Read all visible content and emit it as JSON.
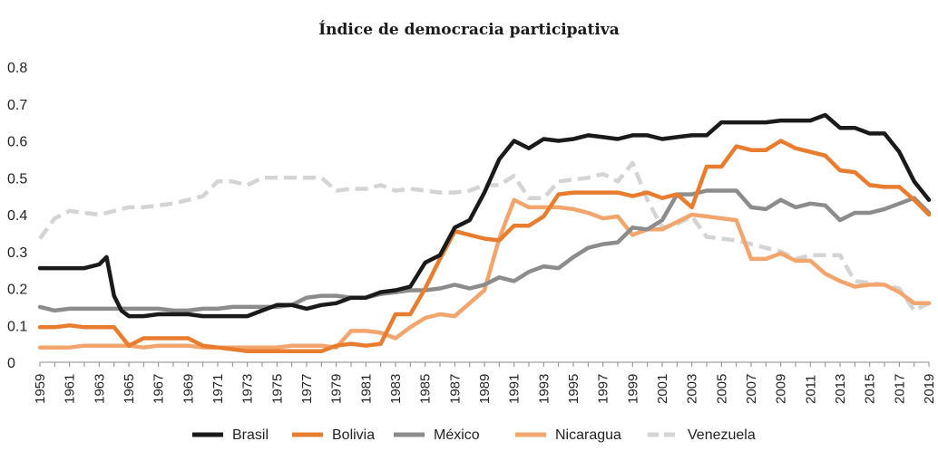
{
  "chart_data": {
    "type": "line",
    "title": "Índice de democracia participativa",
    "xlabel": "",
    "ylabel": "",
    "ylim": [
      0,
      0.8
    ],
    "yticks": [
      "0",
      "0.1",
      "0.2",
      "0.3",
      "0.4",
      "0.5",
      "0.6",
      "0.7",
      "0.8"
    ],
    "xlim": [
      1959,
      2019
    ],
    "xtick_labels": [
      "1959",
      "1961",
      "1963",
      "1965",
      "1967",
      "1969",
      "1971",
      "1973",
      "1975",
      "1977",
      "1979",
      "1981",
      "1983",
      "1985",
      "1987",
      "1989",
      "1991",
      "1993",
      "1995",
      "1997",
      "1999",
      "2001",
      "2003",
      "2005",
      "2007",
      "2009",
      "2011",
      "2013",
      "2015",
      "2017",
      "2019"
    ],
    "grid": false,
    "legend_position": "bottom",
    "series": [
      {
        "name": "Brasil",
        "color": "#1a1a1a",
        "dash": "solid",
        "x": [
          1959,
          1960,
          1961,
          1962,
          1963,
          1963.5,
          1964,
          1964.5,
          1965,
          1966,
          1967,
          1968,
          1969,
          1970,
          1971,
          1972,
          1973,
          1974,
          1975,
          1976,
          1977,
          1978,
          1979,
          1980,
          1981,
          1982,
          1983,
          1984,
          1985,
          1986,
          1987,
          1988,
          1989,
          1990,
          1991,
          1992,
          1993,
          1994,
          1995,
          1996,
          1997,
          1998,
          1999,
          2000,
          2001,
          2002,
          2003,
          2004,
          2005,
          2006,
          2007,
          2008,
          2009,
          2010,
          2011,
          2012,
          2013,
          2014,
          2015,
          2016,
          2017,
          2018,
          2019
        ],
        "values": [
          0.255,
          0.255,
          0.255,
          0.255,
          0.265,
          0.285,
          0.18,
          0.14,
          0.125,
          0.125,
          0.13,
          0.13,
          0.13,
          0.125,
          0.125,
          0.125,
          0.125,
          0.14,
          0.155,
          0.155,
          0.145,
          0.155,
          0.16,
          0.175,
          0.175,
          0.19,
          0.195,
          0.205,
          0.27,
          0.29,
          0.365,
          0.385,
          0.46,
          0.55,
          0.6,
          0.58,
          0.605,
          0.6,
          0.605,
          0.615,
          0.61,
          0.605,
          0.615,
          0.615,
          0.605,
          0.61,
          0.615,
          0.615,
          0.65,
          0.65,
          0.65,
          0.65,
          0.655,
          0.655,
          0.655,
          0.67,
          0.635,
          0.635,
          0.62,
          0.62,
          0.57,
          0.49,
          0.44
        ]
      },
      {
        "name": "Bolivia",
        "color": "#e87d2f",
        "dash": "solid",
        "x": [
          1959,
          1960,
          1961,
          1962,
          1963,
          1964,
          1965,
          1966,
          1967,
          1968,
          1969,
          1970,
          1971,
          1972,
          1973,
          1974,
          1975,
          1976,
          1977,
          1978,
          1979,
          1980,
          1981,
          1982,
          1983,
          1984,
          1985,
          1986,
          1987,
          1988,
          1989,
          1990,
          1991,
          1992,
          1993,
          1994,
          1995,
          1996,
          1997,
          1998,
          1999,
          2000,
          2001,
          2002,
          2003,
          2004,
          2005,
          2006,
          2007,
          2008,
          2009,
          2010,
          2011,
          2012,
          2013,
          2014,
          2015,
          2016,
          2017,
          2018,
          2019
        ],
        "values": [
          0.095,
          0.095,
          0.1,
          0.095,
          0.095,
          0.095,
          0.045,
          0.065,
          0.065,
          0.065,
          0.065,
          0.045,
          0.04,
          0.035,
          0.03,
          0.03,
          0.03,
          0.03,
          0.03,
          0.03,
          0.045,
          0.05,
          0.045,
          0.05,
          0.13,
          0.13,
          0.2,
          0.28,
          0.355,
          0.345,
          0.335,
          0.33,
          0.37,
          0.37,
          0.395,
          0.455,
          0.46,
          0.46,
          0.46,
          0.46,
          0.45,
          0.46,
          0.445,
          0.455,
          0.42,
          0.53,
          0.53,
          0.585,
          0.575,
          0.575,
          0.6,
          0.58,
          0.57,
          0.56,
          0.52,
          0.515,
          0.48,
          0.475,
          0.475,
          0.44,
          0.4
        ]
      },
      {
        "name": "México",
        "color": "#8c8c8c",
        "dash": "solid",
        "x": [
          1959,
          1960,
          1961,
          1962,
          1963,
          1964,
          1965,
          1966,
          1967,
          1968,
          1969,
          1970,
          1971,
          1972,
          1973,
          1974,
          1975,
          1976,
          1977,
          1978,
          1979,
          1980,
          1981,
          1982,
          1983,
          1984,
          1985,
          1986,
          1987,
          1988,
          1989,
          1990,
          1991,
          1992,
          1993,
          1994,
          1995,
          1996,
          1997,
          1998,
          1999,
          2000,
          2001,
          2002,
          2003,
          2004,
          2005,
          2006,
          2007,
          2008,
          2009,
          2010,
          2011,
          2012,
          2013,
          2014,
          2015,
          2016,
          2017,
          2018,
          2019
        ],
        "values": [
          0.15,
          0.14,
          0.145,
          0.145,
          0.145,
          0.145,
          0.145,
          0.145,
          0.145,
          0.14,
          0.14,
          0.145,
          0.145,
          0.15,
          0.15,
          0.15,
          0.15,
          0.155,
          0.175,
          0.18,
          0.18,
          0.175,
          0.175,
          0.185,
          0.19,
          0.195,
          0.195,
          0.2,
          0.21,
          0.2,
          0.21,
          0.23,
          0.22,
          0.245,
          0.26,
          0.255,
          0.285,
          0.31,
          0.32,
          0.325,
          0.365,
          0.36,
          0.385,
          0.455,
          0.455,
          0.465,
          0.465,
          0.465,
          0.42,
          0.415,
          0.44,
          0.42,
          0.43,
          0.425,
          0.385,
          0.405,
          0.405,
          0.415,
          0.43,
          0.445,
          0.405
        ]
      },
      {
        "name": "Nicaragua",
        "color": "#f2a66d",
        "dash": "solid",
        "x": [
          1959,
          1960,
          1961,
          1962,
          1963,
          1964,
          1965,
          1966,
          1967,
          1968,
          1969,
          1970,
          1971,
          1972,
          1973,
          1974,
          1975,
          1976,
          1977,
          1978,
          1979,
          1980,
          1981,
          1982,
          1983,
          1984,
          1985,
          1986,
          1987,
          1988,
          1989,
          1990,
          1991,
          1992,
          1993,
          1994,
          1995,
          1996,
          1997,
          1998,
          1999,
          2000,
          2001,
          2002,
          2003,
          2004,
          2005,
          2006,
          2007,
          2008,
          2009,
          2010,
          2011,
          2012,
          2013,
          2014,
          2015,
          2016,
          2017,
          2018,
          2019
        ],
        "values": [
          0.04,
          0.04,
          0.04,
          0.045,
          0.045,
          0.045,
          0.045,
          0.04,
          0.045,
          0.045,
          0.045,
          0.04,
          0.04,
          0.04,
          0.04,
          0.04,
          0.04,
          0.045,
          0.045,
          0.045,
          0.04,
          0.085,
          0.085,
          0.08,
          0.065,
          0.095,
          0.12,
          0.13,
          0.125,
          0.16,
          0.195,
          0.335,
          0.44,
          0.42,
          0.42,
          0.42,
          0.415,
          0.405,
          0.39,
          0.395,
          0.345,
          0.36,
          0.36,
          0.38,
          0.4,
          0.395,
          0.39,
          0.385,
          0.28,
          0.28,
          0.295,
          0.275,
          0.275,
          0.24,
          0.22,
          0.205,
          0.21,
          0.21,
          0.19,
          0.16,
          0.16
        ]
      },
      {
        "name": "Venezuela",
        "color": "#d4d4d4",
        "dash": "dashed",
        "x": [
          1959,
          1960,
          1961,
          1962,
          1963,
          1964,
          1965,
          1966,
          1967,
          1968,
          1969,
          1970,
          1971,
          1972,
          1973,
          1974,
          1975,
          1976,
          1977,
          1978,
          1979,
          1980,
          1981,
          1982,
          1983,
          1984,
          1985,
          1986,
          1987,
          1988,
          1989,
          1990,
          1991,
          1992,
          1993,
          1994,
          1995,
          1996,
          1997,
          1998,
          1999,
          2000,
          2001,
          2002,
          2003,
          2004,
          2005,
          2006,
          2007,
          2008,
          2009,
          2010,
          2011,
          2012,
          2013,
          2014,
          2015,
          2016,
          2017,
          2018,
          2019
        ],
        "values": [
          0.335,
          0.39,
          0.41,
          0.405,
          0.4,
          0.41,
          0.42,
          0.42,
          0.425,
          0.43,
          0.44,
          0.45,
          0.49,
          0.49,
          0.48,
          0.5,
          0.5,
          0.5,
          0.5,
          0.5,
          0.465,
          0.47,
          0.47,
          0.48,
          0.465,
          0.47,
          0.465,
          0.46,
          0.46,
          0.465,
          0.48,
          0.48,
          0.505,
          0.445,
          0.445,
          0.49,
          0.495,
          0.5,
          0.51,
          0.49,
          0.54,
          0.44,
          0.365,
          0.375,
          0.395,
          0.34,
          0.335,
          0.33,
          0.32,
          0.31,
          0.3,
          0.28,
          0.29,
          0.29,
          0.29,
          0.22,
          0.215,
          0.21,
          0.2,
          0.14,
          0.16
        ]
      }
    ]
  }
}
